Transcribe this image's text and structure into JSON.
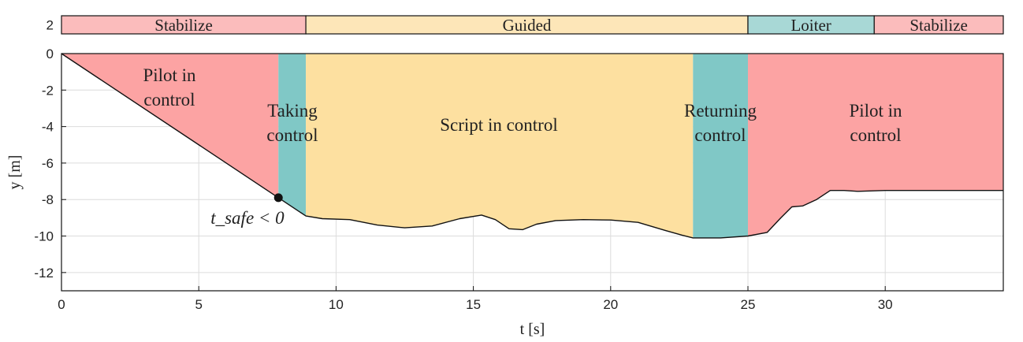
{
  "chart_data": {
    "type": "area",
    "xlabel": "t [s]",
    "ylabel": "y [m]",
    "xlim": [
      0,
      34.3
    ],
    "ylim": [
      -13,
      0
    ],
    "x_ticks": [
      0,
      5,
      10,
      15,
      20,
      25,
      30
    ],
    "y_ticks": [
      0,
      -2,
      -4,
      -6,
      -8,
      -10,
      -12
    ],
    "mode_bar": {
      "tick": "2",
      "segments": [
        {
          "label": "Stabilize",
          "from": 0,
          "to": 8.9,
          "color": "#fbbcbc"
        },
        {
          "label": "Guided",
          "from": 8.9,
          "to": 25.0,
          "color": "#fde6b8"
        },
        {
          "label": "Loiter",
          "from": 25.0,
          "to": 29.6,
          "color": "#a8d8d6"
        },
        {
          "label": "Stabilize",
          "from": 29.6,
          "to": 34.3,
          "color": "#fbbcbc"
        }
      ]
    },
    "regions": [
      {
        "from": 0,
        "to": 7.9,
        "color": "#fca3a3",
        "lines": [
          "Pilot in",
          "control"
        ]
      },
      {
        "from": 7.9,
        "to": 8.9,
        "color": "#80c8c6",
        "lines": [
          "Taking",
          "control"
        ]
      },
      {
        "from": 8.9,
        "to": 23.0,
        "color": "#fde0a0",
        "lines": [
          "Script in control"
        ]
      },
      {
        "from": 23.0,
        "to": 25.0,
        "color": "#80c8c6",
        "lines": [
          "Returning",
          "control"
        ]
      },
      {
        "from": 25.0,
        "to": 34.3,
        "color": "#fca3a3",
        "lines": [
          "Pilot in",
          "control"
        ]
      }
    ],
    "trajectory": {
      "x": [
        0,
        7.9,
        8.9,
        9.5,
        10.5,
        11.5,
        12.5,
        13.5,
        14.5,
        15.3,
        15.8,
        16.3,
        16.8,
        17.3,
        18.0,
        19.0,
        20.0,
        21.0,
        22.0,
        22.6,
        23.0,
        24.0,
        25.0,
        25.7,
        26.2,
        26.6,
        27.0,
        27.5,
        28.0,
        28.5,
        29.0,
        30.0,
        31.0,
        32.0,
        33.0,
        34.3
      ],
      "y": [
        0,
        -7.9,
        -8.9,
        -9.05,
        -9.1,
        -9.4,
        -9.55,
        -9.45,
        -9.05,
        -8.85,
        -9.1,
        -9.6,
        -9.65,
        -9.35,
        -9.15,
        -9.1,
        -9.12,
        -9.25,
        -9.7,
        -9.95,
        -10.1,
        -10.1,
        -10.0,
        -9.8,
        -9.0,
        -8.4,
        -8.35,
        -8.0,
        -7.5,
        -7.5,
        -7.55,
        -7.5,
        -7.5,
        -7.5,
        -7.5,
        -7.5
      ]
    },
    "marker": {
      "x": 7.9,
      "y": -7.9,
      "label": "t_safe < 0"
    },
    "grid": true
  }
}
